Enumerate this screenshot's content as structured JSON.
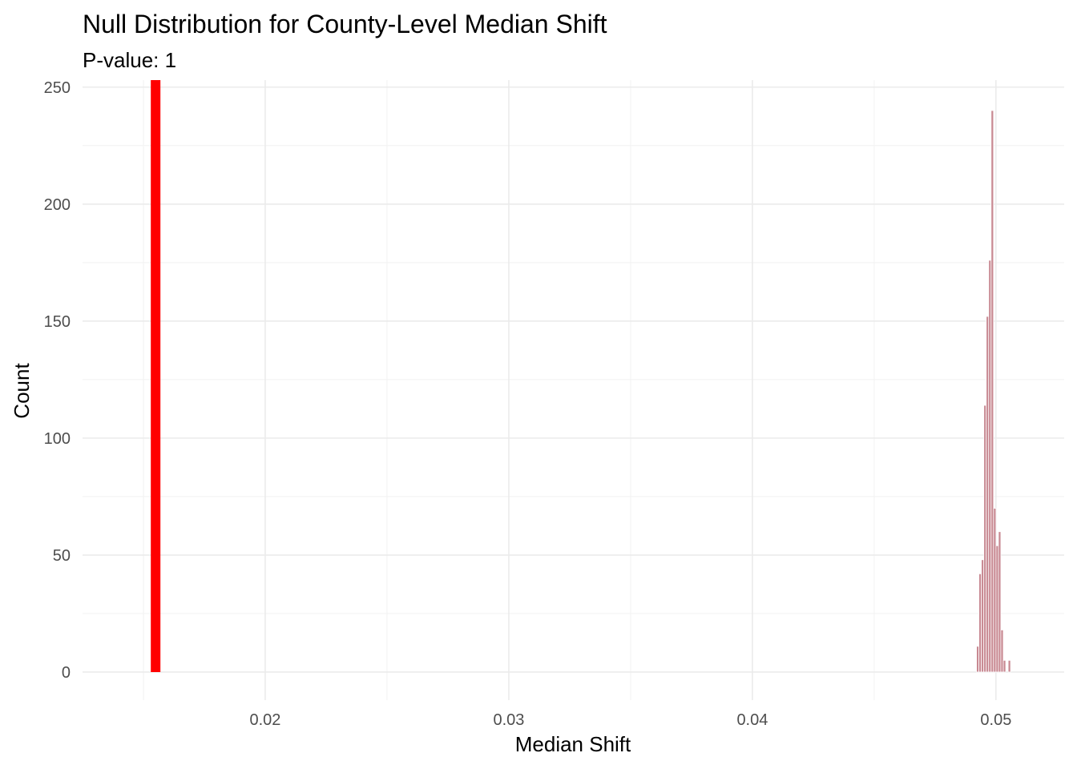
{
  "chart_data": {
    "type": "bar",
    "title": "Null Distribution for County-Level Median Shift",
    "subtitle": "P-value: 1",
    "xlabel": "Median Shift",
    "ylabel": "Count",
    "xlim": [
      0.0125,
      0.0528
    ],
    "ylim": [
      -12,
      253
    ],
    "x_ticks": [
      0.02,
      0.03,
      0.04,
      0.05
    ],
    "x_tick_labels": [
      "0.02",
      "0.03",
      "0.04",
      "0.05"
    ],
    "y_ticks": [
      0,
      50,
      100,
      150,
      200,
      250
    ],
    "y_tick_labels": [
      "0",
      "50",
      "100",
      "150",
      "200",
      "250"
    ],
    "grid": true,
    "observed_line": {
      "x": 0.0155,
      "color": "#ff0000"
    },
    "bin_width": 0.0001,
    "bins": [
      {
        "x": 0.04925,
        "count": 11
      },
      {
        "x": 0.04935,
        "count": 42
      },
      {
        "x": 0.04945,
        "count": 48
      },
      {
        "x": 0.04955,
        "count": 114
      },
      {
        "x": 0.04965,
        "count": 152
      },
      {
        "x": 0.04975,
        "count": 176
      },
      {
        "x": 0.04985,
        "count": 240
      },
      {
        "x": 0.04995,
        "count": 70
      },
      {
        "x": 0.05005,
        "count": 54
      },
      {
        "x": 0.05015,
        "count": 60
      },
      {
        "x": 0.05025,
        "count": 18
      },
      {
        "x": 0.05035,
        "count": 5
      },
      {
        "x": 0.05055,
        "count": 5
      }
    ],
    "bar_color": "#c88992"
  }
}
